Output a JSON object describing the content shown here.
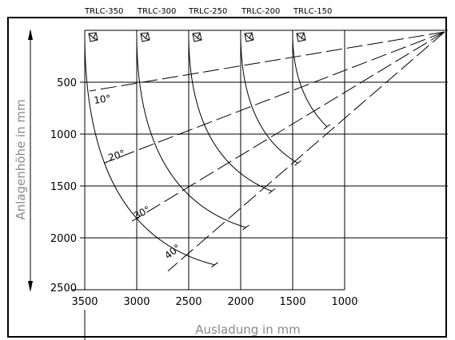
{
  "series_labels": [
    "TRLC-350",
    "TRLC-300",
    "TRLC-250",
    "TRLC-200",
    "TRLC-150"
  ],
  "x_ticks": [
    "3500",
    "3000",
    "2500",
    "2000",
    "1500",
    "1000"
  ],
  "y_ticks": [
    "500",
    "1000",
    "1500",
    "2000",
    "2500"
  ],
  "angle_labels": [
    "10°",
    "20°",
    "30°",
    "40°"
  ],
  "x_axis_label": "Ausladung in mm",
  "y_axis_label": "Anlagenhöhe in mm",
  "colors": {
    "line": "#000000",
    "axis_label": "#8a8a8a",
    "background": "#ffffff"
  },
  "icon": "luminaire-icon",
  "chart_data": {
    "type": "diagram",
    "x_range": [
      3500,
      1000
    ],
    "y_range": [
      0,
      2500
    ],
    "grid": true,
    "beam_angles": [
      10,
      20,
      30,
      40
    ],
    "luminaires": [
      {
        "name": "TRLC-350",
        "x": 3500
      },
      {
        "name": "TRLC-300",
        "x": 3000
      },
      {
        "name": "TRLC-250",
        "x": 2500
      },
      {
        "name": "TRLC-200",
        "x": 2000
      },
      {
        "name": "TRLC-150",
        "x": 1500
      }
    ]
  }
}
